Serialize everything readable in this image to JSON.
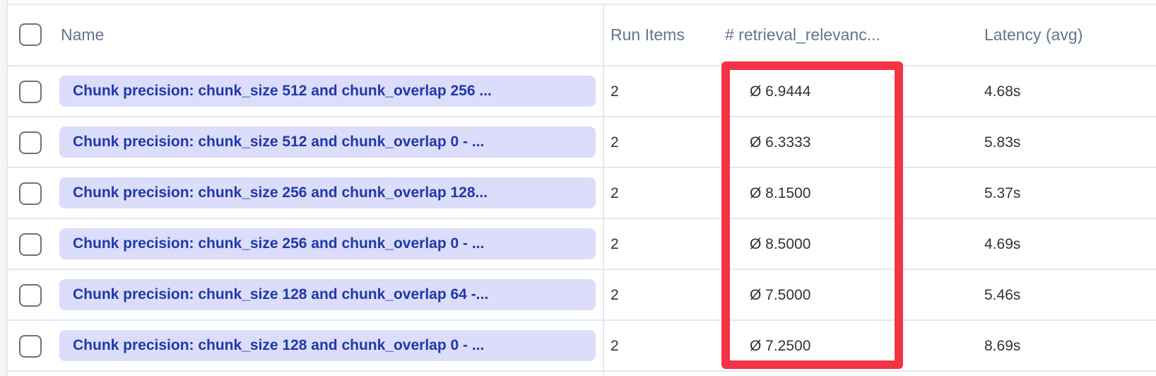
{
  "table": {
    "headers": {
      "name": "Name",
      "run_items": "Run Items",
      "score": "# retrieval_relevanc...",
      "latency": "Latency (avg)"
    },
    "rows": [
      {
        "name": "Chunk precision: chunk_size 512 and chunk_overlap 256 ...",
        "run_items": "2",
        "score": "Ø 6.9444",
        "latency": "4.68s"
      },
      {
        "name": "Chunk precision: chunk_size 512 and chunk_overlap 0 - ...",
        "run_items": "2",
        "score": "Ø 6.3333",
        "latency": "5.83s"
      },
      {
        "name": "Chunk precision: chunk_size 256 and chunk_overlap 128...",
        "run_items": "2",
        "score": "Ø 8.1500",
        "latency": "5.37s"
      },
      {
        "name": "Chunk precision: chunk_size 256 and chunk_overlap 0 - ...",
        "run_items": "2",
        "score": "Ø 8.5000",
        "latency": "4.69s"
      },
      {
        "name": "Chunk precision: chunk_size 128 and chunk_overlap 64 -...",
        "run_items": "2",
        "score": "Ø 7.5000",
        "latency": "5.46s"
      },
      {
        "name": "Chunk precision: chunk_size 128 and chunk_overlap 0 - ...",
        "run_items": "2",
        "score": "Ø 7.2500",
        "latency": "8.69s"
      }
    ]
  },
  "highlight_color": "#f43344"
}
